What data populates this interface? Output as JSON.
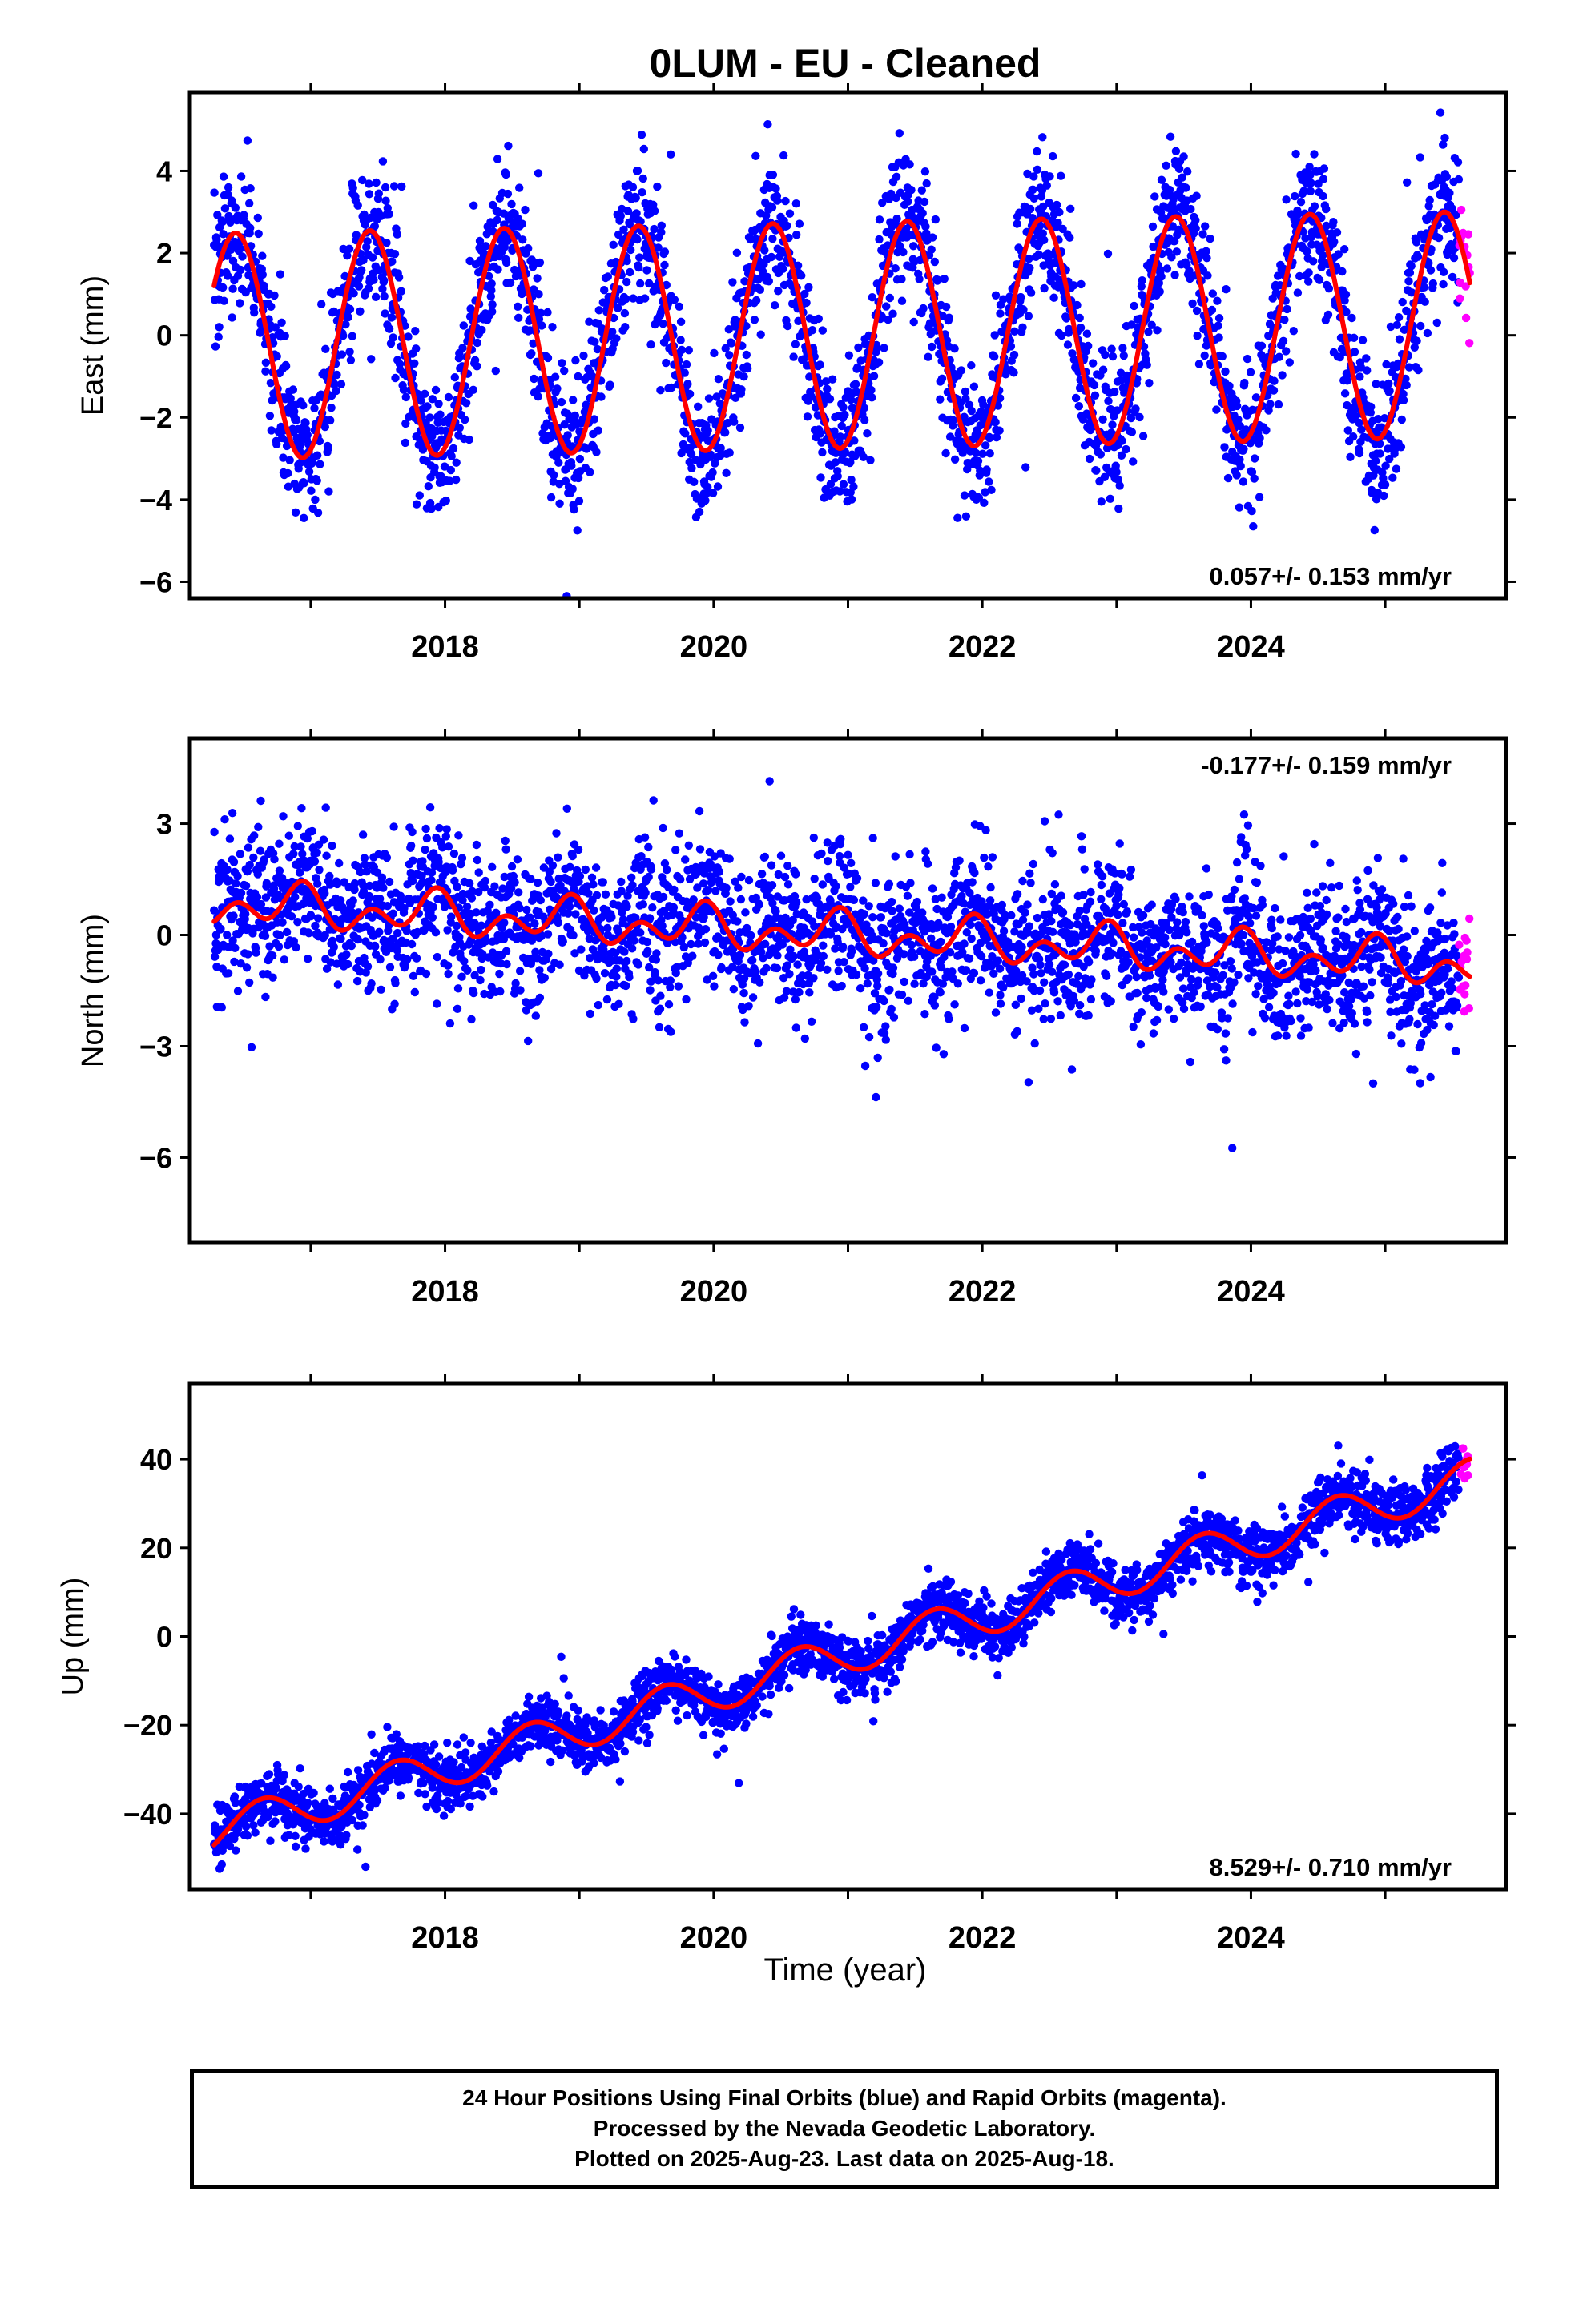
{
  "title": "0LUM  - EU - Cleaned",
  "xlabel": "Time (year)",
  "colors": {
    "final_orbits": "#0000ff",
    "rapid_orbits": "#ff00ff",
    "model_fit": "#ff0000",
    "frame": "#000000"
  },
  "footer": {
    "lines": [
      "24 Hour Positions Using Final Orbits (blue) and Rapid Orbits (magenta).",
      "Processed by the Nevada Geodetic Laboratory.",
      "Plotted on 2025-Aug-23. Last data on 2025-Aug-18."
    ]
  },
  "chart_data": [
    {
      "type": "scatter",
      "panel": "east",
      "ylabel": "East (mm)",
      "xlim": [
        2016.1,
        2025.9
      ],
      "ylim": [
        -6.4,
        5.9
      ],
      "xticks": [
        2018,
        2020,
        2022,
        2024
      ],
      "yticks": [
        -6,
        -4,
        -2,
        0,
        2,
        4
      ],
      "grid": false,
      "rate_label": "0.057+/- 0.153 mm/yr",
      "rate_label_position": "bottom-right",
      "data_span": [
        2016.28,
        2025.63
      ],
      "rapid_start": 2025.55,
      "model": {
        "offset": 0.0,
        "rate": 0.057,
        "ref_epoch": 2021.0,
        "annual_amp": 2.75,
        "peak_phase": 0.44,
        "semiannual_amp": 0.0,
        "scatter_sd": 0.9
      },
      "series": [
        {
          "name": "Final Orbits (blue)",
          "color": "#0000ff"
        },
        {
          "name": "Rapid Orbits (magenta)",
          "color": "#ff00ff"
        }
      ]
    },
    {
      "type": "scatter",
      "panel": "north",
      "ylabel": "North (mm)",
      "xlim": [
        2016.1,
        2025.9
      ],
      "ylim": [
        -8.3,
        5.3
      ],
      "xticks": [
        2018,
        2020,
        2022,
        2024
      ],
      "yticks": [
        -6,
        -3,
        0,
        3
      ],
      "grid": false,
      "rate_label": "-0.177+/- 0.159 mm/yr",
      "rate_label_position": "top-right",
      "data_span": [
        2016.28,
        2025.63
      ],
      "rapid_start": 2025.55,
      "model": {
        "offset": 0.0,
        "rate": -0.177,
        "ref_epoch": 2021.0,
        "annual_amp": 0.35,
        "peak_phase": 0.9,
        "semiannual_amp": 0.4,
        "semiannual_phase": 0.45,
        "scatter_sd": 1.0
      },
      "series": [
        {
          "name": "Final Orbits (blue)",
          "color": "#0000ff"
        },
        {
          "name": "Rapid Orbits (magenta)",
          "color": "#ff00ff"
        }
      ]
    },
    {
      "type": "scatter",
      "panel": "up",
      "ylabel": "Up (mm)",
      "xlim": [
        2016.1,
        2025.9
      ],
      "ylim": [
        -57,
        57
      ],
      "xticks": [
        2018,
        2020,
        2022,
        2024
      ],
      "yticks": [
        -40,
        -20,
        0,
        20,
        40
      ],
      "grid": false,
      "rate_label": "8.529+/- 0.710 mm/yr",
      "rate_label_position": "bottom-right",
      "data_span": [
        2016.28,
        2025.63
      ],
      "rapid_start": 2025.55,
      "model": {
        "offset": -3.9,
        "rate": 8.529,
        "ref_epoch": 2021.0,
        "annual_amp": 4.5,
        "peak_phase": 0.64,
        "semiannual_amp": 0.0,
        "scatter_sd": 3.2
      },
      "series": [
        {
          "name": "Final Orbits (blue)",
          "color": "#0000ff"
        },
        {
          "name": "Rapid Orbits (magenta)",
          "color": "#ff00ff"
        }
      ]
    }
  ]
}
